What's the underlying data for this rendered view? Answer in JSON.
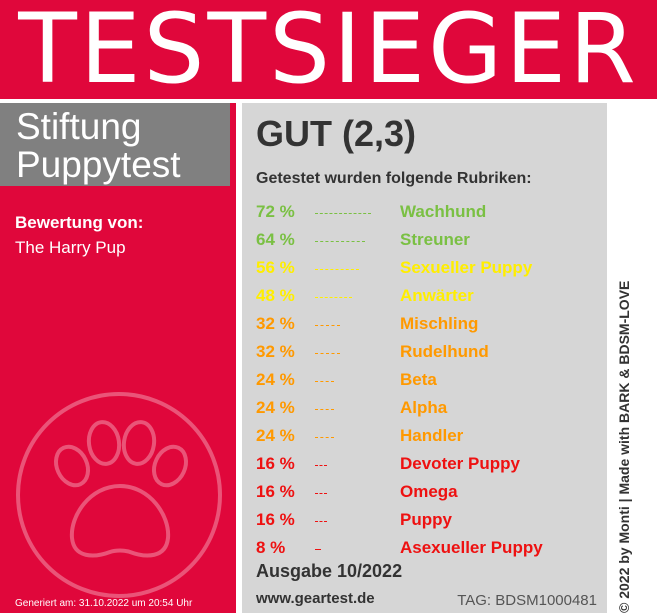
{
  "banner": {
    "title": "TESTSIEGER"
  },
  "brand": {
    "line1": "Stiftung",
    "line2": "Puppytest"
  },
  "rating": {
    "label": "Bewertung von:",
    "value": "The Harry Pup"
  },
  "grade": "GUT (2,3)",
  "intro": "Getestet wurden folgende Rubriken:",
  "categories": [
    {
      "percent": "72 %",
      "value": 72,
      "name": "Wachhund",
      "color": "#7ac043"
    },
    {
      "percent": "64 %",
      "value": 64,
      "name": "Streuner",
      "color": "#7ac043"
    },
    {
      "percent": "56 %",
      "value": 56,
      "name": "Sexueller Puppy",
      "color": "#ffee00"
    },
    {
      "percent": "48 %",
      "value": 48,
      "name": "Anwärter",
      "color": "#ffee00"
    },
    {
      "percent": "32 %",
      "value": 32,
      "name": "Mischling",
      "color": "#ff9900"
    },
    {
      "percent": "32 %",
      "value": 32,
      "name": "Rudelhund",
      "color": "#ff9900"
    },
    {
      "percent": "24 %",
      "value": 24,
      "name": "Beta",
      "color": "#ff9900"
    },
    {
      "percent": "24 %",
      "value": 24,
      "name": "Alpha",
      "color": "#ff9900"
    },
    {
      "percent": "24 %",
      "value": 24,
      "name": "Handler",
      "color": "#ff9900"
    },
    {
      "percent": "16 %",
      "value": 16,
      "name": "Devoter Puppy",
      "color": "#ee1111"
    },
    {
      "percent": "16 %",
      "value": 16,
      "name": "Omega",
      "color": "#ee1111"
    },
    {
      "percent": "16 %",
      "value": 16,
      "name": "Puppy",
      "color": "#ee1111"
    },
    {
      "percent": "8 %",
      "value": 8,
      "name": "Asexueller Puppy",
      "color": "#ee1111"
    }
  ],
  "edition": "Ausgabe 10/2022",
  "website": "www.geartest.de",
  "tag": "TAG: BDSM1000481",
  "generated": "Generiert am: 31.10.2022 um 20:54 Uhr",
  "side_credit": "© 2022 by Monti | Made with BARK & BDSM-LOVE",
  "icons": {
    "paw": "paw-print-icon"
  },
  "colors": {
    "red": "#e0073b",
    "gray": "#808080",
    "panel": "#d6d6d6"
  }
}
